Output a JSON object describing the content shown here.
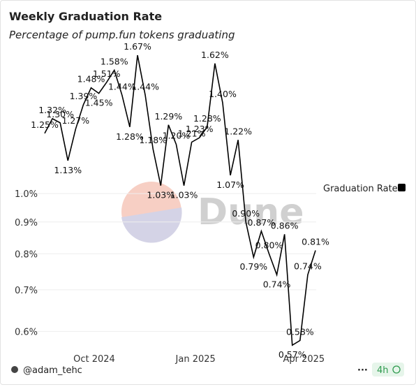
{
  "chart_data": {
    "type": "line",
    "title": "Weekly Graduation Rate",
    "subtitle": "Percentage of pump.fun tokens graduating",
    "watermark": "Dune",
    "author": "@adam_tehc",
    "refresh": "4h",
    "categories": [
      null,
      null,
      null,
      null,
      null,
      null,
      null,
      null,
      null,
      null,
      null,
      null,
      null,
      null,
      null,
      null,
      null,
      null,
      null,
      null,
      null,
      null,
      null,
      null,
      null,
      null,
      null,
      null,
      null,
      null,
      null,
      null,
      null,
      null,
      null,
      null
    ],
    "series": [
      {
        "name": "Graduation Rate",
        "color": "#000000",
        "values": [
          1.25,
          1.32,
          1.3,
          1.13,
          1.27,
          1.39,
          1.48,
          1.45,
          1.51,
          1.58,
          1.44,
          1.28,
          1.67,
          1.44,
          1.18,
          1.03,
          1.29,
          1.2,
          1.03,
          1.21,
          1.23,
          1.28,
          1.62,
          1.4,
          1.07,
          1.22,
          0.9,
          0.79,
          0.87,
          0.8,
          0.74,
          0.86,
          0.57,
          0.58,
          0.74,
          0.81
        ],
        "value_labels": [
          "1.25%",
          "1.32%",
          "1.30%",
          "1.13%",
          "1.27%",
          "1.39%",
          "1.48%",
          "1.45%",
          "1.51%",
          "1.58%",
          "1.44%",
          "1.28%",
          "1.67%",
          "1.44%",
          "1.18%",
          "1.03%",
          "1.29%",
          "1.20%",
          "1.03%",
          "1.21%",
          "1.23%",
          "1.28%",
          "1.62%",
          "1.40%",
          "1.07%",
          "1.22%",
          "0.90%",
          "0.79%",
          "0.87%",
          "0.80%",
          "0.74%",
          "0.86%",
          "0.57%",
          "0.58%",
          "0.74%",
          "0.81%"
        ]
      }
    ],
    "xticks": [
      {
        "value": 6.4,
        "label": "Oct 2024"
      },
      {
        "value": 19.5,
        "label": "Jan 2025"
      },
      {
        "value": 33.5,
        "label": "Apr 2025"
      }
    ],
    "ylim": [
      0.56,
      1.75
    ],
    "yticks": [
      {
        "value": 0.6,
        "label": "0.6%"
      },
      {
        "value": 0.7,
        "label": "0.7%"
      },
      {
        "value": 0.8,
        "label": "0.8%"
      },
      {
        "value": 0.9,
        "label": "0.9%"
      },
      {
        "value": 1.0,
        "label": "1.0%"
      }
    ],
    "log_scale": true,
    "grid": true,
    "legend": "right"
  }
}
